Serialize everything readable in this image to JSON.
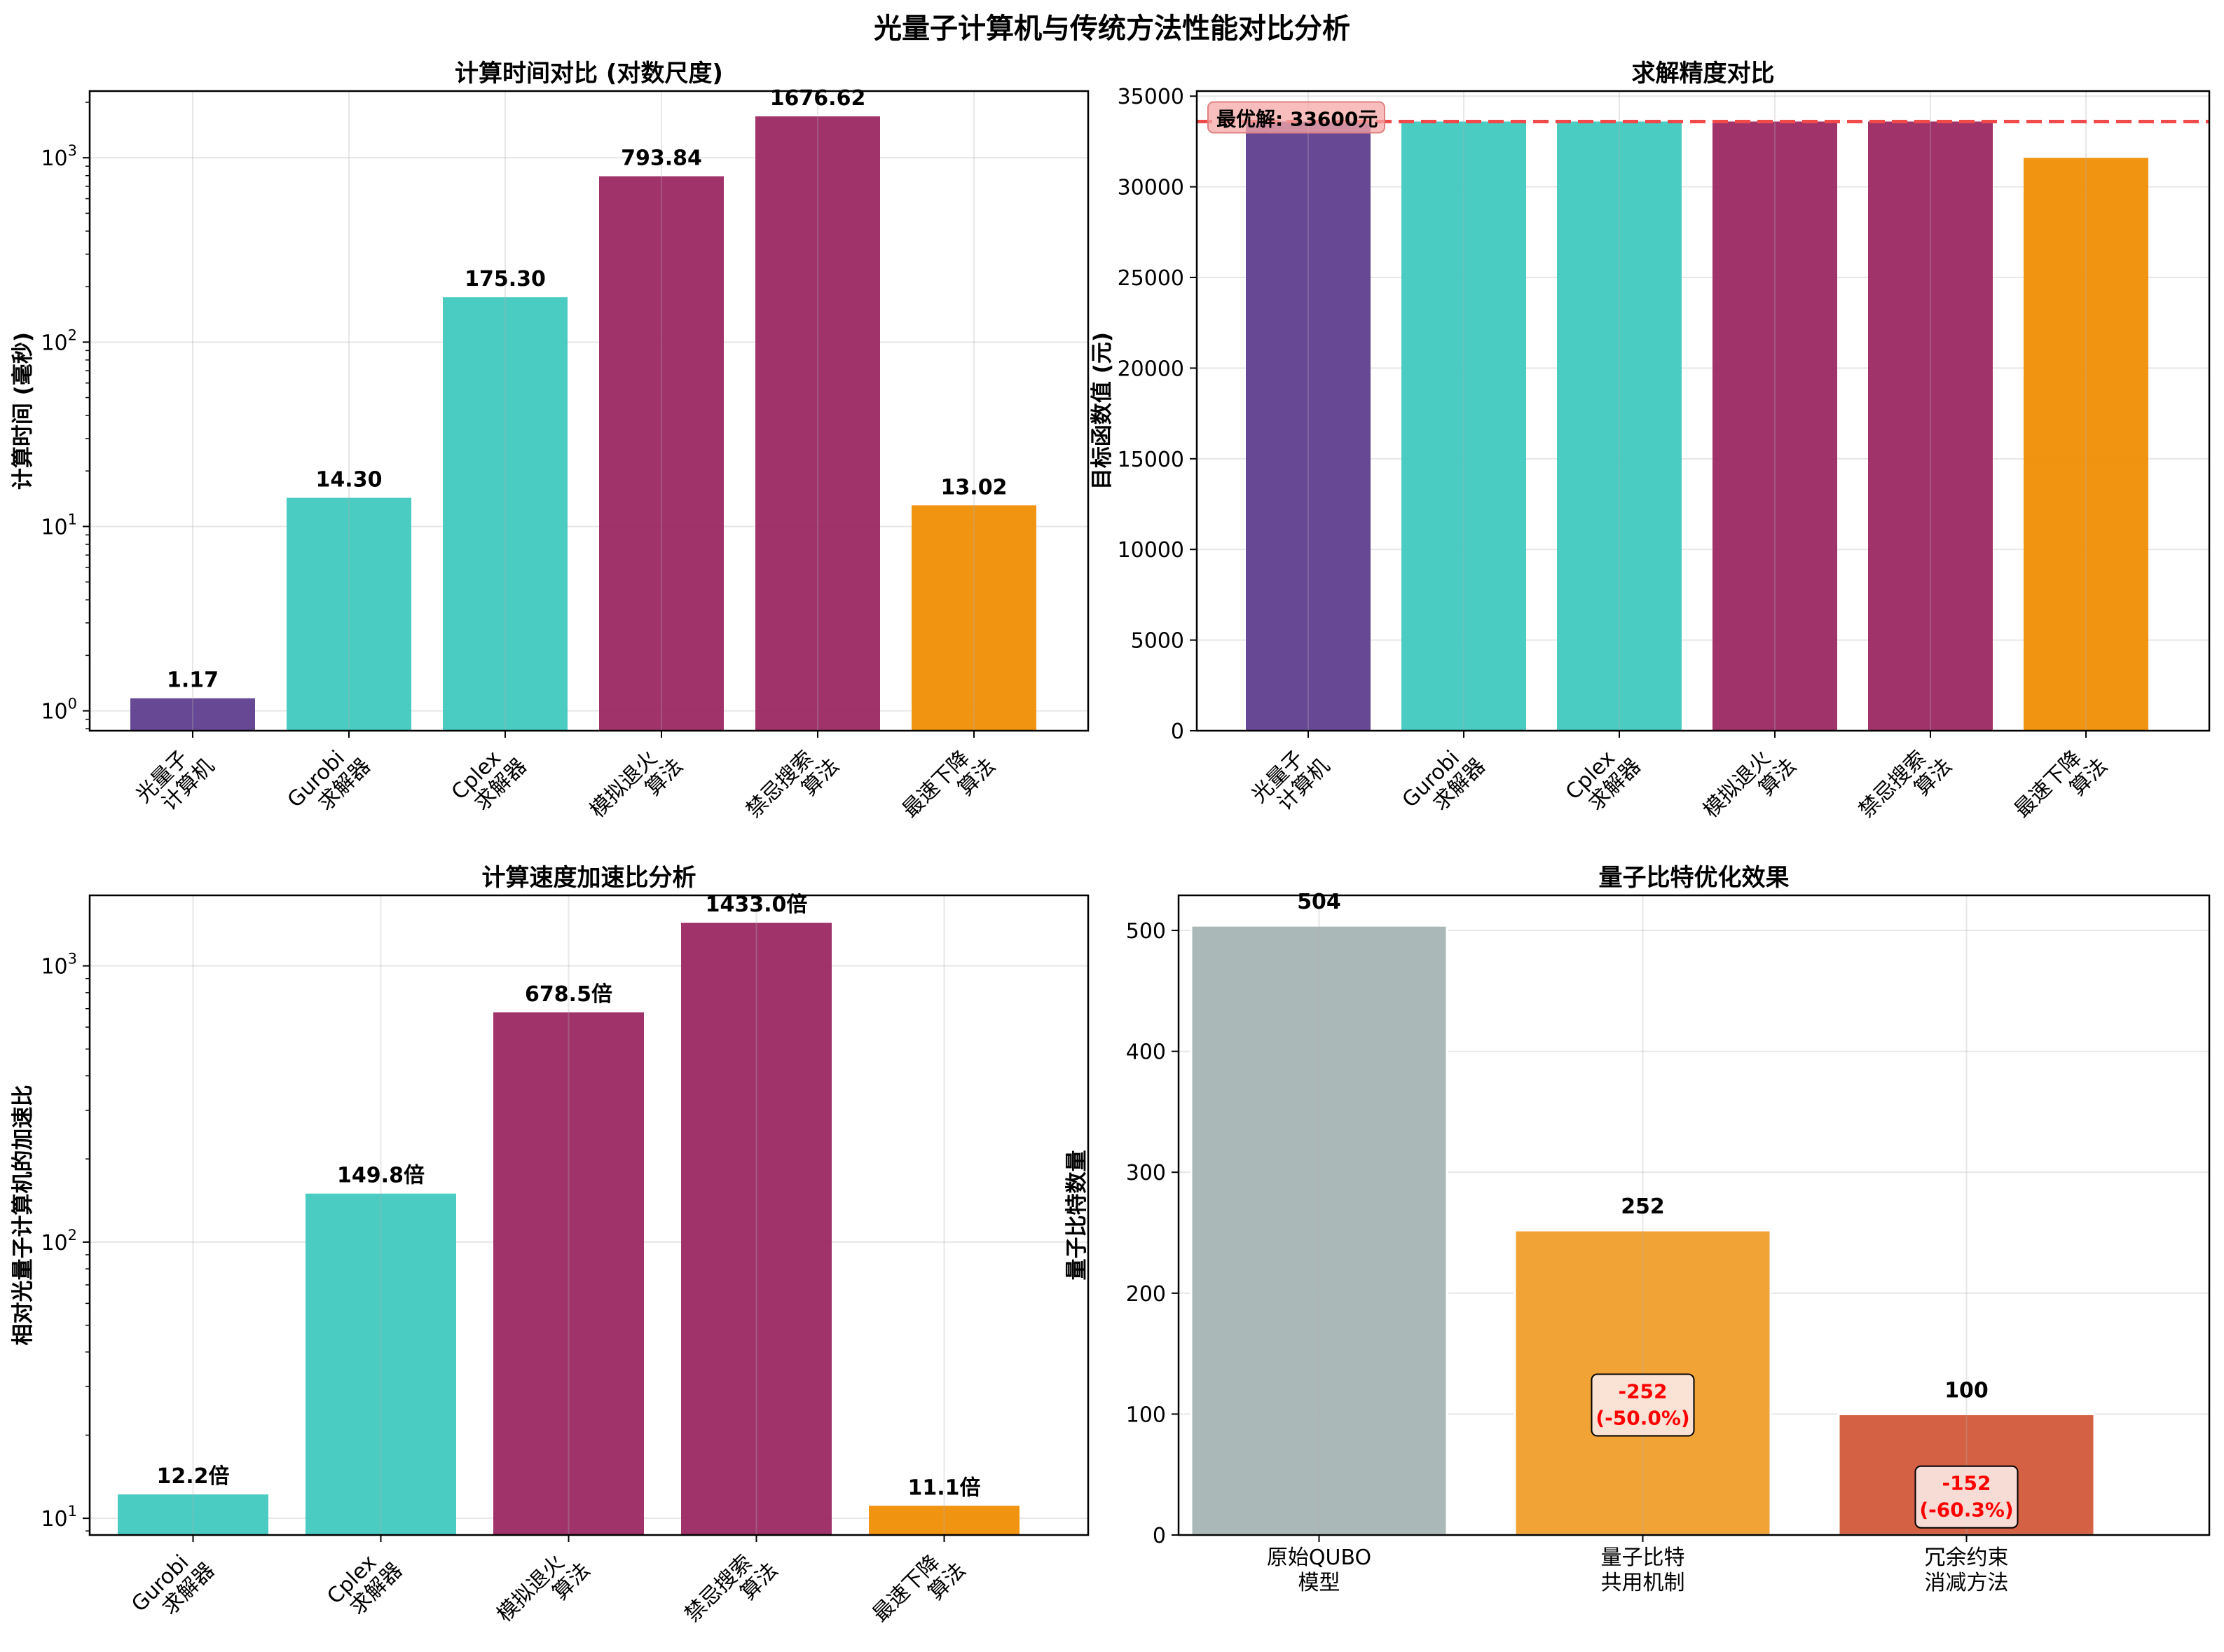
{
  "figure": {
    "title": "光量子计算机与传统方法性能对比分析"
  },
  "colors": {
    "quantum": "#5B3A8C",
    "solver": "#3CC8BD",
    "heuristic": "#99245F",
    "gradient": "#F08C00",
    "gray": "#A6B4B4",
    "orange": "#F09E2A",
    "red": "#D2593A",
    "ref_line": "#F04A4A"
  },
  "chart_data": [
    {
      "id": "time",
      "type": "bar",
      "title": "计算时间对比 (对数尺度)",
      "xlabel": "",
      "ylabel": "计算时间 (毫秒)",
      "yscale": "log",
      "ylim": [
        0.78,
        2300
      ],
      "categories": [
        "光量子\n计算机",
        "Gurobi\n求解器",
        "Cplex\n求解器",
        "模拟退火\n算法",
        "禁忌搜索\n算法",
        "最速下降\n算法"
      ],
      "values": [
        1.17,
        14.3,
        175.3,
        793.84,
        1676.62,
        13.02
      ],
      "value_labels": [
        "1.17",
        "14.30",
        "175.30",
        "793.84",
        "1676.62",
        "13.02"
      ],
      "bar_colors": [
        "quantum",
        "solver",
        "solver",
        "heuristic",
        "heuristic",
        "gradient"
      ],
      "yticks": [
        1,
        10,
        100,
        1000
      ],
      "ytick_labels": [
        "10^0",
        "10^1",
        "10^2",
        "10^3"
      ],
      "grid": true
    },
    {
      "id": "accuracy",
      "type": "bar",
      "title": "求解精度对比",
      "xlabel": "",
      "ylabel": "目标函数值 (元)",
      "yscale": "linear",
      "ylim": [
        0,
        35280
      ],
      "categories": [
        "光量子\n计算机",
        "Gurobi\n求解器",
        "Cplex\n求解器",
        "模拟退火\n算法",
        "禁忌搜索\n算法",
        "最速下降\n算法"
      ],
      "values": [
        33600,
        33600,
        33600,
        33600,
        33600,
        31600
      ],
      "bar_colors": [
        "quantum",
        "solver",
        "solver",
        "heuristic",
        "heuristic",
        "gradient"
      ],
      "yticks": [
        0,
        5000,
        10000,
        15000,
        20000,
        25000,
        30000,
        35000
      ],
      "ytick_labels": [
        "0",
        "5000",
        "10000",
        "15000",
        "20000",
        "25000",
        "30000",
        "35000"
      ],
      "reference_line": {
        "value": 33600,
        "label": "最优解: 33600元",
        "style": "dashed"
      },
      "grid": true
    },
    {
      "id": "speedup",
      "type": "bar",
      "title": "计算速度加速比分析",
      "xlabel": "",
      "ylabel": "相对光量子计算机的加速比",
      "yscale": "log",
      "ylim": [
        8.7,
        1800
      ],
      "categories": [
        "Gurobi\n求解器",
        "Cplex\n求解器",
        "模拟退火\n算法",
        "禁忌搜索\n算法",
        "最速下降\n算法"
      ],
      "values": [
        12.2,
        149.8,
        678.5,
        1433.0,
        11.1
      ],
      "value_labels": [
        "12.2倍",
        "149.8倍",
        "678.5倍",
        "1433.0倍",
        "11.1倍"
      ],
      "bar_colors": [
        "solver",
        "solver",
        "heuristic",
        "heuristic",
        "gradient"
      ],
      "yticks": [
        10,
        100,
        1000
      ],
      "ytick_labels": [
        "10^1",
        "10^2",
        "10^3"
      ],
      "grid": true
    },
    {
      "id": "qubits",
      "type": "bar",
      "title": "量子比特优化效果",
      "xlabel": "",
      "ylabel": "量子比特数量",
      "yscale": "linear",
      "ylim": [
        0,
        529
      ],
      "categories": [
        "原始QUBO\n模型",
        "量子比特\n共用机制",
        "冗余约束\n消减方法"
      ],
      "values": [
        504,
        252,
        100
      ],
      "value_labels": [
        "504",
        "252",
        "100"
      ],
      "bar_colors": [
        "gray",
        "orange",
        "red"
      ],
      "yticks": [
        0,
        100,
        200,
        300,
        400,
        500
      ],
      "ytick_labels": [
        "0",
        "100",
        "200",
        "300",
        "400",
        "500"
      ],
      "reductions": [
        null,
        "-252\n(-50.0%)",
        "-152\n(-60.3%)"
      ],
      "grid": true
    }
  ]
}
